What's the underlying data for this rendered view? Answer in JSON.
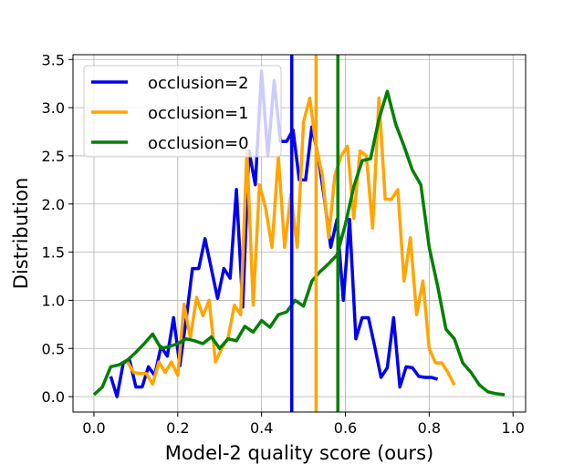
{
  "chart_data": {
    "type": "line",
    "title": "",
    "xlabel": "Model-2 quality score (ours)",
    "ylabel": "Distribution",
    "xlim": [
      -0.05,
      1.03
    ],
    "ylim": [
      -0.16,
      3.55
    ],
    "xticks": [
      0.0,
      0.2,
      0.4,
      0.6,
      0.8,
      1.0
    ],
    "xtick_labels": [
      "0.0",
      "0.2",
      "0.4",
      "0.6",
      "0.8",
      "1.0"
    ],
    "yticks": [
      0.0,
      0.5,
      1.0,
      1.5,
      2.0,
      2.5,
      3.0,
      3.5
    ],
    "ytick_labels": [
      "0.0",
      "0.5",
      "1.0",
      "1.5",
      "2.0",
      "2.5",
      "3.0",
      "3.5"
    ],
    "grid": true,
    "legend_position": "top-left",
    "series": [
      {
        "name": "occlusion=2",
        "color": "#0000ee",
        "x": [
          0.04,
          0.055,
          0.07,
          0.085,
          0.1,
          0.115,
          0.13,
          0.145,
          0.16,
          0.175,
          0.19,
          0.205,
          0.22,
          0.235,
          0.25,
          0.265,
          0.28,
          0.295,
          0.31,
          0.325,
          0.34,
          0.355,
          0.37,
          0.385,
          0.4,
          0.415,
          0.43,
          0.445,
          0.46,
          0.475,
          0.49,
          0.505,
          0.52,
          0.535,
          0.55,
          0.565,
          0.58,
          0.595,
          0.61,
          0.625,
          0.64,
          0.655,
          0.67,
          0.685,
          0.7,
          0.715,
          0.73,
          0.745,
          0.76,
          0.775,
          0.79,
          0.805,
          0.82
        ],
        "values": [
          0.21,
          0.0,
          0.35,
          0.38,
          0.1,
          0.1,
          0.31,
          0.22,
          0.52,
          0.42,
          0.82,
          0.32,
          0.8,
          1.33,
          1.33,
          1.64,
          1.33,
          1.02,
          1.33,
          1.23,
          2.15,
          0.93,
          2.55,
          2.2,
          3.38,
          2.5,
          3.28,
          2.65,
          2.65,
          2.77,
          2.25,
          2.25,
          2.8,
          2.5,
          2.05,
          1.55,
          1.84,
          1.0,
          1.84,
          0.6,
          0.82,
          0.82,
          0.52,
          0.2,
          0.3,
          0.82,
          0.1,
          0.31,
          0.3,
          0.21,
          0.2,
          0.2,
          0.18
        ]
      },
      {
        "name": "occlusion=1",
        "color": "#ffa500",
        "x": [
          0.08,
          0.095,
          0.11,
          0.125,
          0.14,
          0.155,
          0.17,
          0.185,
          0.2,
          0.215,
          0.23,
          0.245,
          0.26,
          0.275,
          0.29,
          0.305,
          0.32,
          0.335,
          0.35,
          0.365,
          0.38,
          0.395,
          0.41,
          0.425,
          0.44,
          0.455,
          0.47,
          0.485,
          0.5,
          0.515,
          0.53,
          0.545,
          0.56,
          0.575,
          0.59,
          0.605,
          0.62,
          0.635,
          0.65,
          0.665,
          0.68,
          0.695,
          0.71,
          0.725,
          0.74,
          0.755,
          0.77,
          0.785,
          0.8,
          0.815,
          0.83,
          0.845,
          0.86
        ],
        "values": [
          0.36,
          0.25,
          0.24,
          0.24,
          0.13,
          0.36,
          0.25,
          0.36,
          0.22,
          0.96,
          0.61,
          1.03,
          0.84,
          1.0,
          0.36,
          0.5,
          0.61,
          0.95,
          0.85,
          2.55,
          0.95,
          2.2,
          1.95,
          1.55,
          2.5,
          1.55,
          2.1,
          1.55,
          2.85,
          3.1,
          2.6,
          2.3,
          1.65,
          2.3,
          2.5,
          2.6,
          1.85,
          2.55,
          2.5,
          1.75,
          3.1,
          2.05,
          2.05,
          2.15,
          1.2,
          1.65,
          0.85,
          1.2,
          0.5,
          0.35,
          0.35,
          0.25,
          0.12
        ]
      },
      {
        "name": "occlusion=0",
        "color": "#008000",
        "x": [
          0.0,
          0.02,
          0.04,
          0.06,
          0.08,
          0.1,
          0.12,
          0.14,
          0.16,
          0.18,
          0.2,
          0.22,
          0.24,
          0.26,
          0.28,
          0.3,
          0.32,
          0.34,
          0.36,
          0.38,
          0.4,
          0.42,
          0.44,
          0.46,
          0.48,
          0.5,
          0.52,
          0.54,
          0.56,
          0.58,
          0.6,
          0.62,
          0.64,
          0.66,
          0.68,
          0.7,
          0.72,
          0.74,
          0.76,
          0.78,
          0.8,
          0.82,
          0.84,
          0.86,
          0.88,
          0.9,
          0.92,
          0.94,
          0.96,
          0.98
        ],
        "values": [
          0.02,
          0.1,
          0.31,
          0.33,
          0.38,
          0.46,
          0.55,
          0.65,
          0.5,
          0.52,
          0.55,
          0.6,
          0.58,
          0.55,
          0.62,
          0.5,
          0.6,
          0.58,
          0.73,
          0.67,
          0.79,
          0.72,
          0.85,
          0.88,
          1.0,
          0.94,
          1.2,
          1.3,
          1.38,
          1.47,
          1.79,
          2.18,
          2.45,
          2.47,
          2.88,
          3.17,
          2.83,
          2.6,
          2.35,
          2.2,
          1.55,
          1.15,
          0.7,
          0.6,
          0.35,
          0.25,
          0.12,
          0.05,
          0.03,
          0.02
        ]
      }
    ],
    "vlines": [
      {
        "x": 0.472,
        "color": "#0000ee"
      },
      {
        "x": 0.53,
        "color": "#ffa500"
      },
      {
        "x": 0.582,
        "color": "#008000"
      }
    ]
  }
}
